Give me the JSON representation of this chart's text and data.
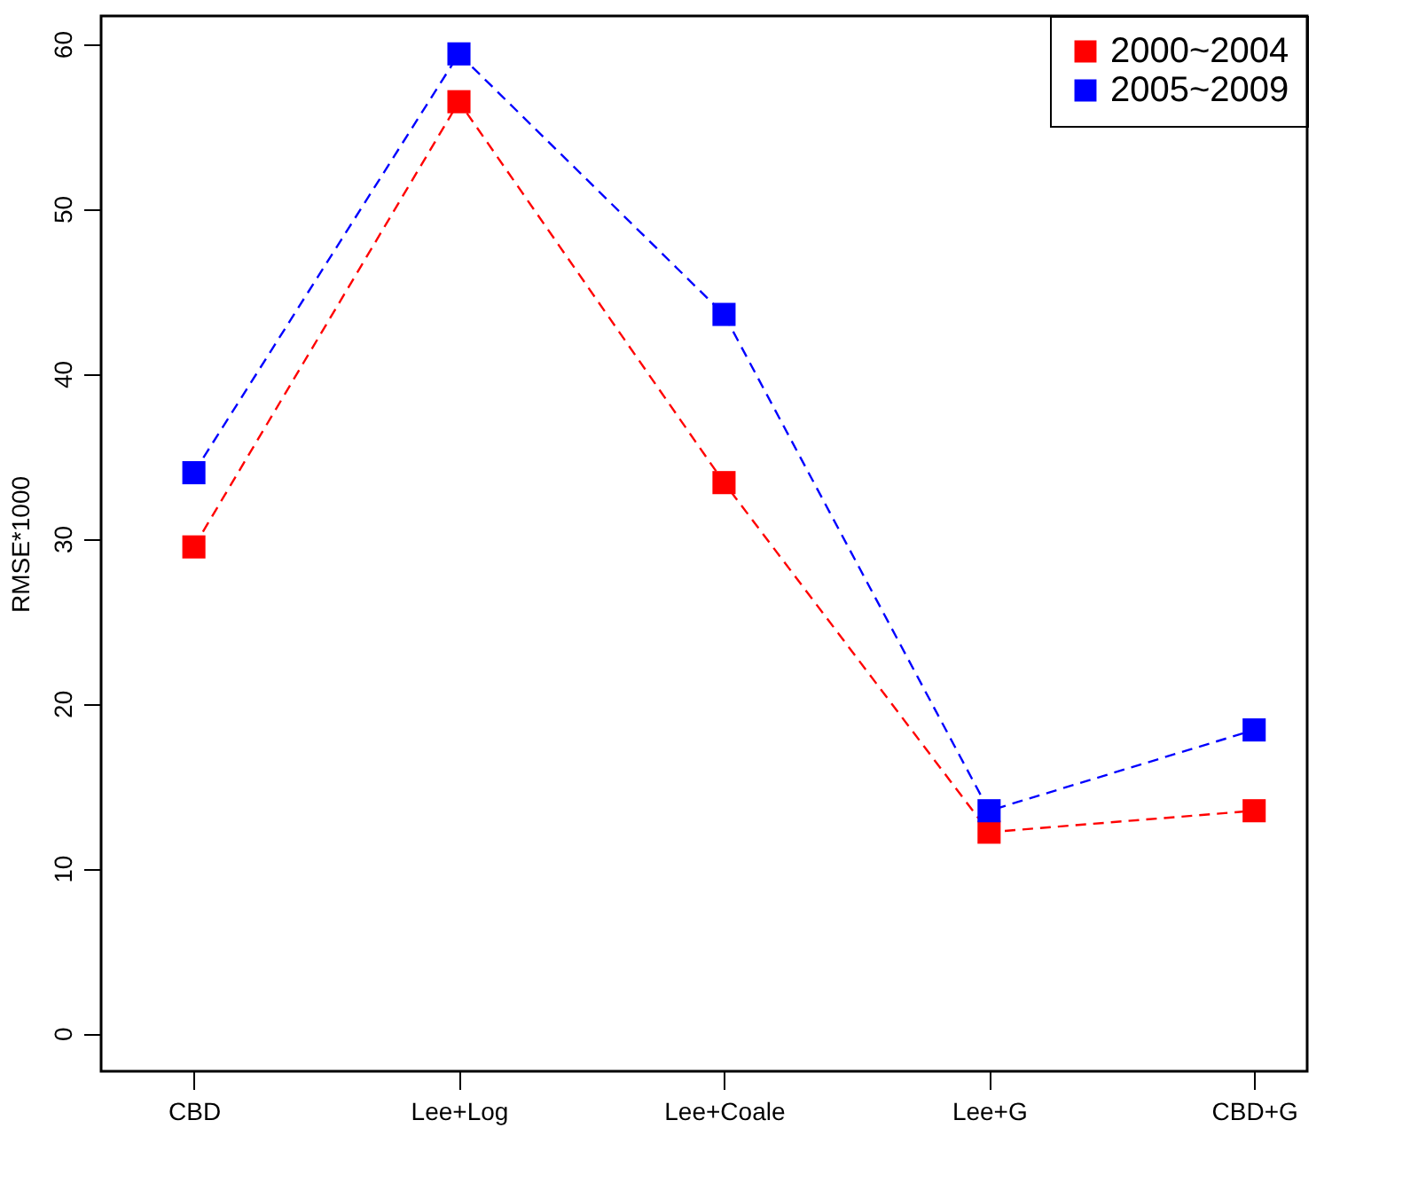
{
  "chart_data": {
    "type": "line",
    "ylabel": "RMSE*1000",
    "categories": [
      "CBD",
      "Lee+Log",
      "Lee+Coale",
      "Lee+G",
      "CBD+G"
    ],
    "series": [
      {
        "name": "2000~2004",
        "color": "#ff0000",
        "values": [
          29.5,
          56.5,
          33.4,
          12.2,
          13.5
        ]
      },
      {
        "name": "2005~2009",
        "color": "#0000ff",
        "values": [
          34.0,
          59.4,
          43.6,
          13.5,
          18.4
        ]
      }
    ],
    "ylim": [
      -2.3,
      61.7
    ],
    "yticks": [
      0,
      10,
      20,
      30,
      40,
      50,
      60
    ],
    "grid": false,
    "legend": "top right",
    "marker": "square",
    "line_style": "dashed"
  }
}
